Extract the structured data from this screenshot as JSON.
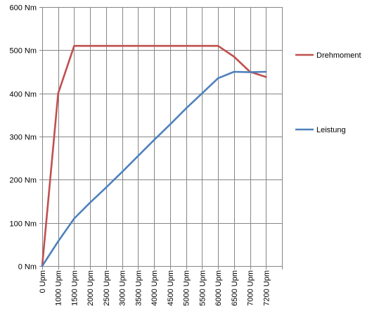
{
  "chart_data": {
    "type": "line",
    "categories": [
      "0 Upm",
      "1000 Upm",
      "1500 Upm",
      "2000 Upm",
      "2500 Upm",
      "3000 Upm",
      "3500 Upm",
      "4000 Upm",
      "4500 Upm",
      "5000 Upm",
      "5500 Upm",
      "6000 Upm",
      "6500 Upm",
      "7000 Upm",
      "7200 Upm"
    ],
    "y_ticks": [
      "0 Nm",
      "100 Nm",
      "200 Nm",
      "300 Nm",
      "400 Nm",
      "500 Nm",
      "600 Nm"
    ],
    "ylim": [
      0,
      600
    ],
    "grid": true,
    "legend_position": "right",
    "series": [
      {
        "name": "Drehmoment",
        "color": "#c0504d",
        "values": [
          0,
          400,
          510,
          510,
          510,
          510,
          510,
          510,
          510,
          510,
          510,
          510,
          485,
          450,
          438
        ]
      },
      {
        "name": "Leistung",
        "color": "#4f81bd",
        "values": [
          0,
          57,
          110,
          147,
          182,
          218,
          255,
          292,
          328,
          365,
          400,
          435,
          450,
          449,
          450
        ]
      }
    ]
  }
}
